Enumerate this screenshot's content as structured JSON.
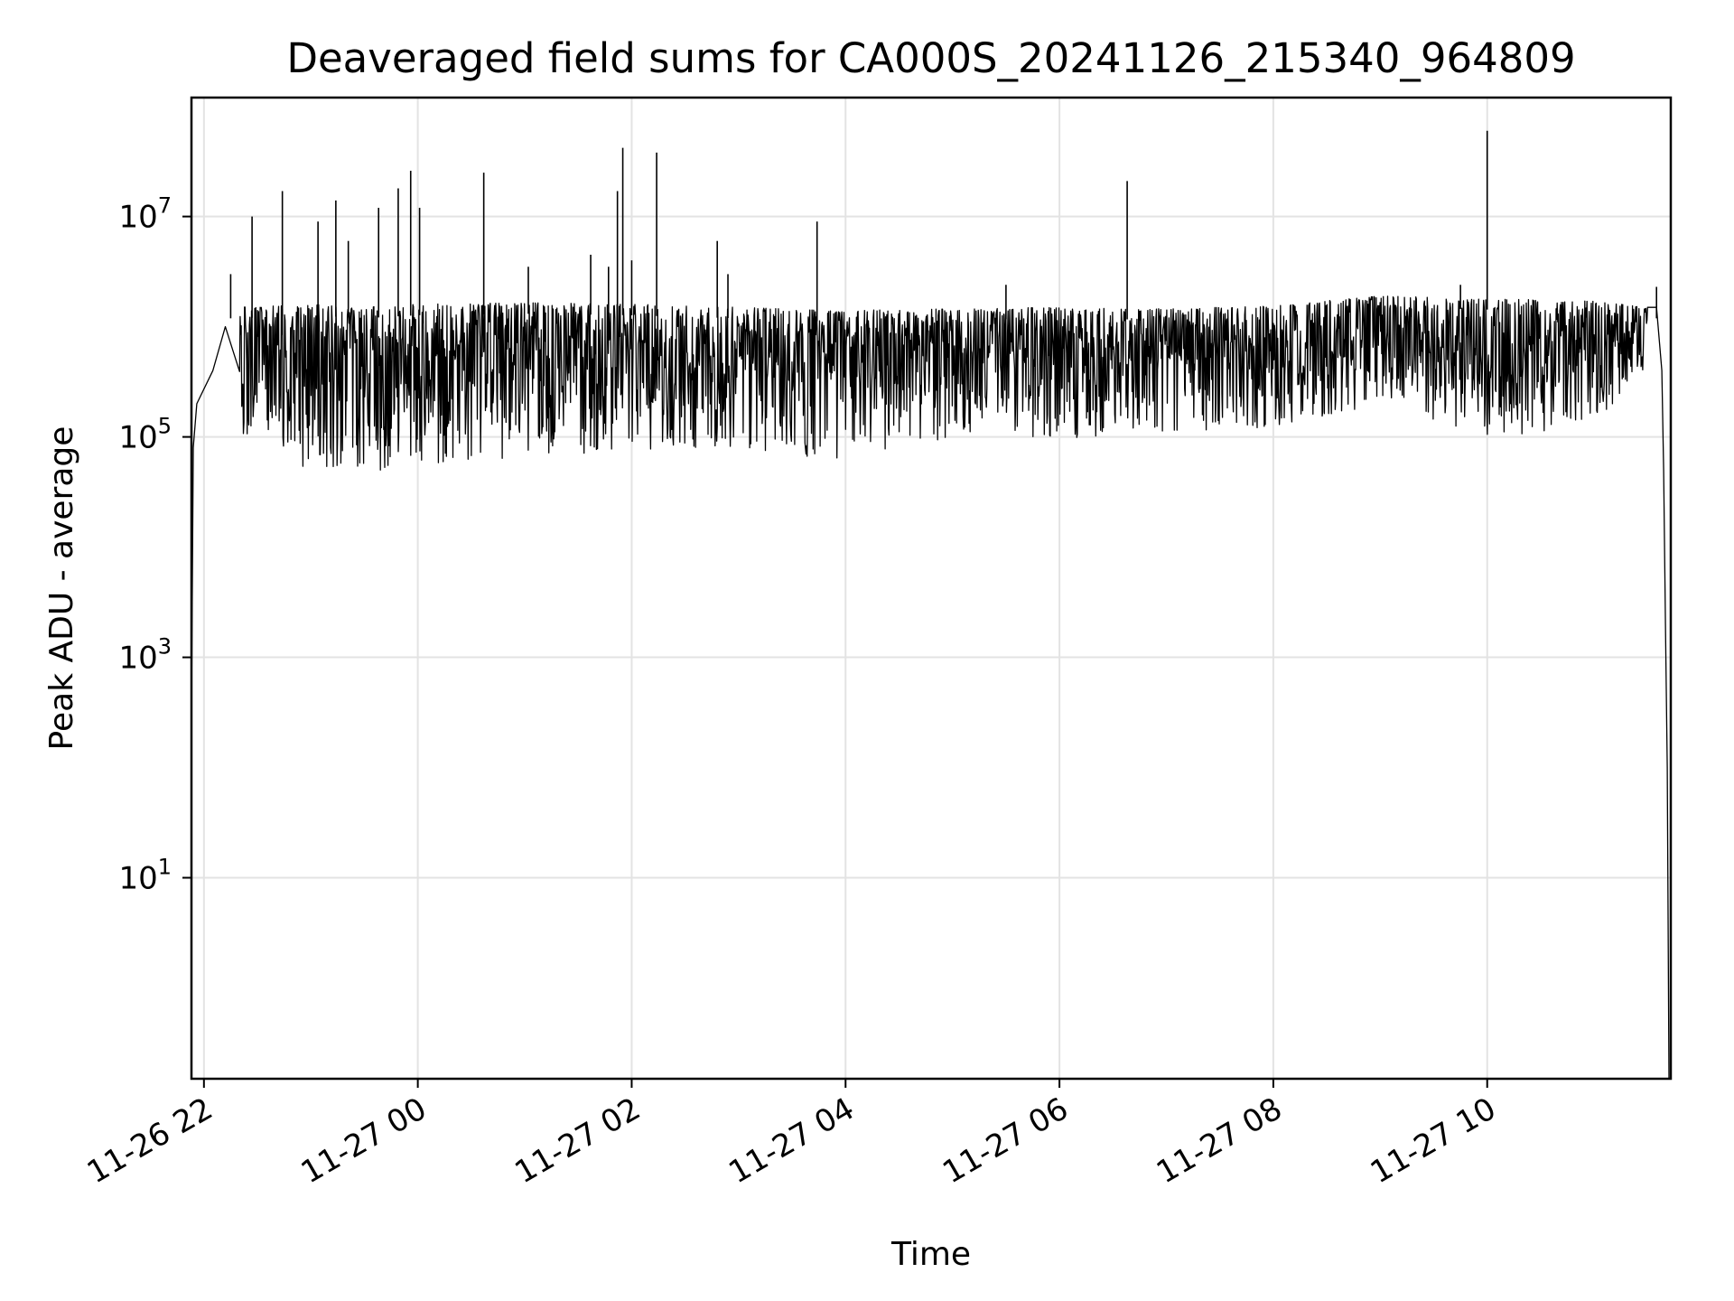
{
  "chart_data": {
    "type": "line",
    "title": "Deaveraged field sums for CA000S_20241126_215340_964809",
    "xlabel": "Time",
    "ylabel": "Peak ADU - average",
    "x_scale": "time",
    "y_scale": "log",
    "xlim": [
      "2024-11-26 21:53",
      "2024-11-27 11:43"
    ],
    "ylim": [
      0.15,
      120000000.0
    ],
    "grid": true,
    "line_color": "#000000",
    "x_ticks": [
      {
        "value": "2024-11-26 22:00",
        "label": "11-26 22"
      },
      {
        "value": "2024-11-27 00:00",
        "label": "11-27 00"
      },
      {
        "value": "2024-11-27 02:00",
        "label": "11-27 02"
      },
      {
        "value": "2024-11-27 04:00",
        "label": "11-27 04"
      },
      {
        "value": "2024-11-27 06:00",
        "label": "11-27 06"
      },
      {
        "value": "2024-11-27 08:00",
        "label": "11-27 08"
      },
      {
        "value": "2024-11-27 10:00",
        "label": "11-27 10"
      }
    ],
    "y_ticks": [
      {
        "value": 10,
        "base": "10",
        "exp": "1"
      },
      {
        "value": 1000,
        "base": "10",
        "exp": "3"
      },
      {
        "value": 100000,
        "base": "10",
        "exp": "5"
      },
      {
        "value": 10000000,
        "base": "10",
        "exp": "7"
      }
    ],
    "series": [
      {
        "band": [
          {
            "x": "2024-11-26 22:20",
            "low": 100000,
            "high": 1500000
          },
          {
            "x": "2024-11-26 23:00",
            "low": 50000,
            "high": 1600000
          },
          {
            "x": "2024-11-26 23:30",
            "low": 45000,
            "high": 1500000
          },
          {
            "x": "2024-11-27 00:00",
            "low": 55000,
            "high": 1600000
          },
          {
            "x": "2024-11-27 01:00",
            "low": 65000,
            "high": 1650000
          },
          {
            "x": "2024-11-27 02:00",
            "low": 70000,
            "high": 1600000
          },
          {
            "x": "2024-11-27 03:00",
            "low": 80000,
            "high": 1500000
          },
          {
            "x": "2024-11-27 03:50",
            "low": 60000,
            "high": 1400000
          },
          {
            "x": "2024-11-27 05:00",
            "low": 100000,
            "high": 1450000
          },
          {
            "x": "2024-11-27 06:00",
            "low": 95000,
            "high": 1500000
          },
          {
            "x": "2024-11-27 07:00",
            "low": 110000,
            "high": 1450000
          },
          {
            "x": "2024-11-27 08:00",
            "low": 120000,
            "high": 1550000
          },
          {
            "x": "2024-11-27 09:00",
            "low": 200000,
            "high": 1900000
          },
          {
            "x": "2024-11-27 10:00",
            "low": 100000,
            "high": 1800000
          },
          {
            "x": "2024-11-27 11:00",
            "low": 120000,
            "high": 1700000
          },
          {
            "x": "2024-11-27 11:30",
            "low": 450000,
            "high": 1500000
          }
        ],
        "edges": [
          {
            "x": "2024-11-26 21:53",
            "y": 300
          },
          {
            "x": "2024-11-26 21:54",
            "y": 80000
          },
          {
            "x": "2024-11-26 21:56",
            "y": 200000
          },
          {
            "x": "2024-11-26 22:05",
            "y": 400000
          },
          {
            "x": "2024-11-26 22:12",
            "y": 1000000
          },
          {
            "x": "2024-11-27 11:35",
            "y": 1500000
          },
          {
            "x": "2024-11-27 11:38",
            "y": 400000
          },
          {
            "x": "2024-11-27 11:39",
            "y": 50000
          },
          {
            "x": "2024-11-27 11:40",
            "y": 2000
          },
          {
            "x": "2024-11-27 11:41",
            "y": 100
          },
          {
            "x": "2024-11-27 11:42",
            "y": 0.15
          }
        ],
        "spikes": [
          {
            "x": "2024-11-26 22:15",
            "y": 3000000
          },
          {
            "x": "2024-11-26 22:27",
            "y": 10000000
          },
          {
            "x": "2024-11-26 22:44",
            "y": 17000000
          },
          {
            "x": "2024-11-26 23:04",
            "y": 9000000
          },
          {
            "x": "2024-11-26 23:14",
            "y": 14000000
          },
          {
            "x": "2024-11-26 23:21",
            "y": 6000000
          },
          {
            "x": "2024-11-26 23:38",
            "y": 12000000
          },
          {
            "x": "2024-11-26 23:49",
            "y": 18000000
          },
          {
            "x": "2024-11-26 23:56",
            "y": 26000000
          },
          {
            "x": "2024-11-27 00:01",
            "y": 12000000
          },
          {
            "x": "2024-11-27 00:37",
            "y": 25000000
          },
          {
            "x": "2024-11-27 01:02",
            "y": 3500000
          },
          {
            "x": "2024-11-27 01:37",
            "y": 4500000
          },
          {
            "x": "2024-11-27 01:47",
            "y": 3500000
          },
          {
            "x": "2024-11-27 01:52",
            "y": 17000000
          },
          {
            "x": "2024-11-27 01:55",
            "y": 42000000
          },
          {
            "x": "2024-11-27 02:00",
            "y": 4000000
          },
          {
            "x": "2024-11-27 02:14",
            "y": 38000000
          },
          {
            "x": "2024-11-27 02:48",
            "y": 6000000
          },
          {
            "x": "2024-11-27 02:54",
            "y": 3000000
          },
          {
            "x": "2024-11-27 03:44",
            "y": 9000000
          },
          {
            "x": "2024-11-27 05:30",
            "y": 2400000
          },
          {
            "x": "2024-11-27 06:38",
            "y": 21000000
          },
          {
            "x": "2024-11-27 09:45",
            "y": 2400000
          },
          {
            "x": "2024-11-27 10:00",
            "y": 60000000
          },
          {
            "x": "2024-11-27 11:35",
            "y": 2300000
          }
        ]
      }
    ]
  }
}
